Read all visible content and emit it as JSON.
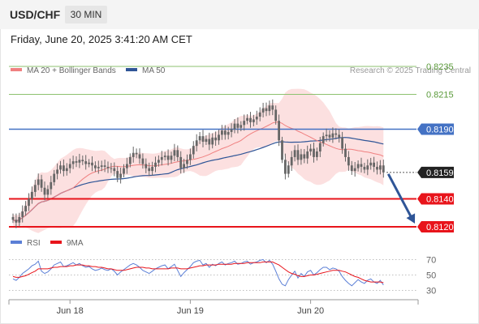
{
  "header": {
    "symbol": "USD/CHF",
    "timeframe": "30 MIN",
    "timestamp": "Friday, June 20, 2025 3:41:20 AM CET"
  },
  "legend": {
    "ma20": "MA 20 + Bollinger Bands",
    "ma50": "MA 50",
    "credit": "Research © 2025 Trading Central",
    "rsi": "RSI",
    "nine_ma": "9MA"
  },
  "colors": {
    "ma20": "#f08080",
    "ma50": "#2f5597",
    "bollinger": "#fbd6d6",
    "candle": "#666666",
    "target_green": "#8dc26f",
    "pivot_blue": "#4472c4",
    "support_red": "#e8141b",
    "arrow": "#2f5597",
    "rsi": "#5b7fd6",
    "rsi_ma": "#e8141b"
  },
  "chart_data": [
    {
      "type": "candlestick",
      "ylim": [
        0.8113,
        0.8242
      ],
      "x_ticks": [
        "Jun 18",
        "Jun 19",
        "Jun 20"
      ],
      "x_tick_index": [
        18,
        56,
        94
      ],
      "levels": [
        {
          "value": 0.8235,
          "label": "0.8235",
          "kind": "target",
          "color": "#8dc26f",
          "line": "thin"
        },
        {
          "value": 0.8215,
          "label": "0.8215",
          "kind": "target",
          "color": "#8dc26f",
          "line": "thin"
        },
        {
          "value": 0.819,
          "label": "0.8190",
          "kind": "pivot",
          "color": "#4472c4",
          "line": "solid"
        },
        {
          "value": 0.8159,
          "label": "0.8159",
          "kind": "last",
          "color": "#222222",
          "line": "dotted"
        },
        {
          "value": 0.814,
          "label": "0.8140",
          "kind": "support",
          "color": "#e8141b",
          "line": "thick"
        },
        {
          "value": 0.812,
          "label": "0.8120",
          "kind": "support",
          "color": "#e8141b",
          "line": "thick"
        }
      ],
      "close": [
        0.8125,
        0.8123,
        0.8127,
        0.8131,
        0.8135,
        0.814,
        0.8145,
        0.815,
        0.8154,
        0.8148,
        0.8143,
        0.8147,
        0.8152,
        0.8158,
        0.8161,
        0.8164,
        0.816,
        0.8162,
        0.8165,
        0.8167,
        0.8166,
        0.8168,
        0.8167,
        0.8165,
        0.8166,
        0.8164,
        0.8162,
        0.8163,
        0.8164,
        0.8163,
        0.8162,
        0.8162,
        0.816,
        0.8155,
        0.8158,
        0.8162,
        0.8165,
        0.817,
        0.8173,
        0.8172,
        0.8169,
        0.8165,
        0.8162,
        0.816,
        0.8163,
        0.8166,
        0.8168,
        0.817,
        0.8171,
        0.8168,
        0.8171,
        0.8175,
        0.817,
        0.8162,
        0.8165,
        0.8168,
        0.8172,
        0.8178,
        0.8182,
        0.8185,
        0.8181,
        0.8183,
        0.8179,
        0.8184,
        0.8182,
        0.8186,
        0.8189,
        0.8186,
        0.8188,
        0.819,
        0.8194,
        0.8191,
        0.8193,
        0.8196,
        0.8198,
        0.8195,
        0.8197,
        0.8199,
        0.8202,
        0.8205,
        0.8203,
        0.8207,
        0.8204,
        0.8196,
        0.8182,
        0.8168,
        0.8158,
        0.8164,
        0.817,
        0.8175,
        0.8168,
        0.8172,
        0.8169,
        0.8174,
        0.8176,
        0.817,
        0.8174,
        0.818,
        0.8185,
        0.8186,
        0.8184,
        0.8187,
        0.8186,
        0.8184,
        0.8176,
        0.817,
        0.8164,
        0.816,
        0.8162,
        0.8165,
        0.8163,
        0.8161,
        0.8164,
        0.8166,
        0.8163,
        0.8161,
        0.8164,
        0.8159
      ]
    },
    {
      "type": "line",
      "ylim": [
        20,
        80
      ],
      "y_ticks": [
        70,
        50,
        30
      ],
      "series": [
        {
          "name": "RSI",
          "values": [
            45,
            43,
            47,
            52,
            55,
            58,
            62,
            64,
            68,
            55,
            52,
            54,
            58,
            63,
            65,
            67,
            61,
            62,
            64,
            66,
            63,
            65,
            62,
            60,
            61,
            58,
            56,
            57,
            59,
            57,
            56,
            58,
            55,
            50,
            54,
            57,
            60,
            63,
            65,
            63,
            60,
            56,
            54,
            52,
            55,
            58,
            60,
            62,
            63,
            58,
            61,
            64,
            56,
            48,
            53,
            57,
            61,
            66,
            68,
            69,
            63,
            65,
            60,
            64,
            62,
            65,
            67,
            63,
            65,
            66,
            68,
            64,
            65,
            67,
            68,
            64,
            66,
            67,
            69,
            70,
            66,
            69,
            64,
            55,
            45,
            38,
            36,
            44,
            50,
            55,
            46,
            52,
            48,
            54,
            56,
            50,
            53,
            57,
            60,
            60,
            57,
            59,
            58,
            55,
            48,
            43,
            39,
            36,
            40,
            44,
            41,
            39,
            43,
            45,
            41,
            39,
            43,
            37
          ]
        },
        {
          "name": "9MA",
          "values": [
            48,
            47,
            47,
            48,
            49,
            51,
            53,
            55,
            58,
            58,
            58,
            58,
            59,
            60,
            60,
            61,
            61,
            61,
            62,
            62,
            63,
            63,
            63,
            62,
            62,
            61,
            61,
            60,
            60,
            59,
            58,
            58,
            57,
            56,
            56,
            56,
            57,
            58,
            59,
            60,
            60,
            60,
            59,
            59,
            58,
            58,
            58,
            58,
            58,
            58,
            59,
            59,
            59,
            58,
            58,
            58,
            59,
            60,
            61,
            62,
            62,
            63,
            63,
            63,
            63,
            64,
            64,
            64,
            64,
            64,
            65,
            65,
            65,
            65,
            66,
            66,
            66,
            66,
            66,
            67,
            67,
            67,
            67,
            65,
            63,
            60,
            57,
            54,
            52,
            51,
            49,
            48,
            48,
            49,
            50,
            50,
            51,
            52,
            53,
            54,
            55,
            56,
            56,
            56,
            55,
            54,
            52,
            50,
            48,
            47,
            45,
            43,
            42,
            41,
            41,
            41,
            41,
            40
          ]
        }
      ]
    }
  ]
}
